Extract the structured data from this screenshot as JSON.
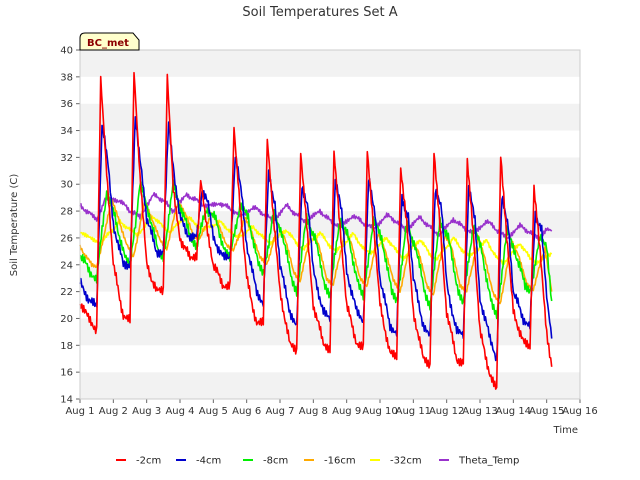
{
  "chart_data": {
    "type": "line",
    "title": "Soil Temperatures Set A",
    "xlabel": "Time",
    "ylabel": "Soil Temperature (C)",
    "station_tag": "BC_met",
    "xlim": [
      1,
      16
    ],
    "ylim": [
      14,
      40
    ],
    "x_ticks": [
      {
        "value": 1,
        "label": "Aug 1"
      },
      {
        "value": 2,
        "label": "Aug 2"
      },
      {
        "value": 3,
        "label": "Aug 3"
      },
      {
        "value": 4,
        "label": "Aug 4"
      },
      {
        "value": 5,
        "label": "Aug 5"
      },
      {
        "value": 6,
        "label": "Aug 6"
      },
      {
        "value": 7,
        "label": "Aug 7"
      },
      {
        "value": 8,
        "label": "Aug 8"
      },
      {
        "value": 9,
        "label": "Aug 9"
      },
      {
        "value": 10,
        "label": "Aug 10"
      },
      {
        "value": 11,
        "label": "Aug 11"
      },
      {
        "value": 12,
        "label": "Aug 12"
      },
      {
        "value": 13,
        "label": "Aug 13"
      },
      {
        "value": 14,
        "label": "Aug 14"
      },
      {
        "value": 15,
        "label": "Aug 15"
      },
      {
        "value": 16,
        "label": "Aug 16"
      }
    ],
    "y_ticks": [
      14,
      16,
      18,
      20,
      22,
      24,
      26,
      28,
      30,
      32,
      34,
      36,
      38,
      40
    ],
    "grid": "horizontal alternating bands",
    "legend_position": "bottom",
    "series": [
      {
        "name": "-2cm",
        "color": "#ff0000",
        "x": [
          1.0,
          1.25,
          1.5,
          1.62,
          1.8,
          2.0,
          2.3,
          2.5,
          2.62,
          2.8,
          3.0,
          3.3,
          3.5,
          3.62,
          3.8,
          4.0,
          4.3,
          4.5,
          4.62,
          4.8,
          5.0,
          5.3,
          5.5,
          5.62,
          5.8,
          6.0,
          6.3,
          6.5,
          6.62,
          6.8,
          7.0,
          7.3,
          7.5,
          7.62,
          7.8,
          8.0,
          8.3,
          8.5,
          8.62,
          8.8,
          9.0,
          9.3,
          9.5,
          9.62,
          9.8,
          10.0,
          10.3,
          10.5,
          10.62,
          10.8,
          11.0,
          11.3,
          11.5,
          11.62,
          11.8,
          12.0,
          12.3,
          12.5,
          12.62,
          12.8,
          13.0,
          13.3,
          13.5,
          13.62,
          13.8,
          14.0,
          14.3,
          14.5,
          14.62,
          14.8,
          15.0,
          15.15
        ],
        "y": [
          21.2,
          20.0,
          19.2,
          38.0,
          31.0,
          24.0,
          20.2,
          19.8,
          38.3,
          30.5,
          24.0,
          22.0,
          22.0,
          38.0,
          29.5,
          26.0,
          24.5,
          24.8,
          30.5,
          27.0,
          24.0,
          22.5,
          22.5,
          34.2,
          28.5,
          23.0,
          19.6,
          19.6,
          33.2,
          27.5,
          22.0,
          18.0,
          17.6,
          32.3,
          27.0,
          21.0,
          18.2,
          17.8,
          32.6,
          27.0,
          21.0,
          18.2,
          17.8,
          32.4,
          27.0,
          21.0,
          17.4,
          17.0,
          31.0,
          27.0,
          20.5,
          17.0,
          16.6,
          32.5,
          27.0,
          20.5,
          17.0,
          16.8,
          31.9,
          26.5,
          19.0,
          15.8,
          14.6,
          32.0,
          26.0,
          20.5,
          18.2,
          17.8,
          29.7,
          25.0,
          19.0,
          16.4
        ]
      },
      {
        "name": "-4cm",
        "color": "#0000cc",
        "x": [
          1.0,
          1.25,
          1.5,
          1.66,
          1.85,
          2.0,
          2.3,
          2.5,
          2.66,
          2.85,
          3.0,
          3.3,
          3.5,
          3.66,
          3.85,
          4.0,
          4.3,
          4.5,
          4.66,
          4.85,
          5.0,
          5.3,
          5.5,
          5.66,
          5.85,
          6.0,
          6.3,
          6.5,
          6.66,
          6.85,
          7.0,
          7.3,
          7.5,
          7.66,
          7.85,
          8.0,
          8.3,
          8.5,
          8.66,
          8.85,
          9.0,
          9.3,
          9.5,
          9.66,
          9.85,
          10.0,
          10.3,
          10.5,
          10.66,
          10.85,
          11.0,
          11.3,
          11.5,
          11.66,
          11.85,
          12.0,
          12.3,
          12.5,
          12.66,
          12.85,
          13.0,
          13.3,
          13.5,
          13.66,
          13.85,
          14.0,
          14.3,
          14.5,
          14.66,
          14.85,
          15.0,
          15.15
        ],
        "y": [
          22.7,
          21.5,
          20.8,
          34.4,
          31.5,
          27.0,
          24.0,
          24.0,
          34.8,
          31.0,
          27.5,
          25.0,
          25.0,
          34.8,
          30.0,
          27.5,
          26.0,
          26.0,
          29.5,
          28.5,
          26.0,
          24.5,
          24.5,
          32.0,
          29.5,
          25.5,
          22.0,
          21.2,
          30.8,
          28.5,
          24.0,
          20.5,
          19.4,
          30.0,
          28.0,
          23.5,
          20.5,
          19.8,
          30.2,
          28.0,
          23.5,
          20.5,
          19.8,
          30.3,
          28.0,
          23.0,
          19.5,
          19.0,
          29.0,
          27.5,
          23.0,
          19.5,
          18.6,
          29.7,
          28.0,
          22.5,
          19.0,
          18.7,
          29.6,
          27.5,
          21.5,
          18.5,
          17.0,
          29.0,
          27.0,
          22.0,
          20.0,
          19.5,
          27.8,
          26.5,
          21.5,
          18.5
        ]
      },
      {
        "name": "-8cm",
        "color": "#00ee00",
        "x": [
          1.0,
          1.3,
          1.5,
          1.8,
          2.05,
          2.35,
          2.5,
          2.8,
          3.05,
          3.35,
          3.5,
          3.8,
          4.05,
          4.35,
          4.5,
          4.8,
          5.05,
          5.35,
          5.5,
          5.8,
          6.05,
          6.35,
          6.5,
          6.8,
          7.05,
          7.35,
          7.5,
          7.8,
          8.05,
          8.35,
          8.5,
          8.8,
          9.05,
          9.35,
          9.5,
          9.8,
          10.05,
          10.35,
          10.5,
          10.8,
          11.05,
          11.35,
          11.5,
          11.8,
          12.05,
          12.35,
          12.5,
          12.8,
          13.05,
          13.35,
          13.5,
          13.8,
          14.05,
          14.35,
          14.5,
          14.8,
          15.0,
          15.15
        ],
        "y": [
          24.8,
          23.5,
          23.0,
          29.5,
          27.5,
          24.5,
          23.8,
          30.0,
          28.0,
          25.0,
          24.5,
          30.0,
          28.0,
          26.0,
          25.5,
          28.2,
          27.5,
          25.0,
          24.5,
          28.5,
          27.5,
          24.0,
          23.2,
          27.8,
          26.5,
          23.0,
          22.0,
          27.5,
          26.0,
          22.5,
          21.8,
          27.5,
          26.0,
          22.5,
          21.5,
          27.3,
          26.0,
          22.0,
          21.2,
          27.0,
          25.5,
          22.0,
          21.0,
          27.3,
          26.0,
          22.0,
          21.2,
          27.0,
          25.0,
          21.0,
          20.0,
          26.5,
          25.0,
          22.5,
          22.0,
          26.0,
          25.5,
          21.3
        ]
      },
      {
        "name": "-16cm",
        "color": "#ffaa00",
        "x": [
          1.0,
          1.35,
          1.5,
          1.95,
          2.15,
          2.4,
          2.6,
          2.95,
          3.15,
          3.4,
          3.6,
          3.95,
          4.15,
          4.4,
          4.6,
          4.95,
          5.15,
          5.4,
          5.6,
          5.95,
          6.15,
          6.4,
          6.6,
          6.95,
          7.15,
          7.4,
          7.6,
          7.95,
          8.15,
          8.4,
          8.6,
          8.95,
          9.15,
          9.4,
          9.6,
          9.95,
          10.15,
          10.4,
          10.6,
          10.95,
          11.15,
          11.4,
          11.6,
          11.95,
          12.15,
          12.4,
          12.6,
          12.95,
          13.15,
          13.4,
          13.6,
          13.95,
          14.15,
          14.4,
          14.6,
          14.95,
          15.15
        ],
        "y": [
          25.3,
          24.0,
          23.8,
          28.8,
          27.5,
          25.5,
          24.5,
          28.8,
          27.5,
          25.8,
          25.2,
          28.8,
          27.8,
          26.2,
          26.0,
          27.8,
          27.0,
          25.5,
          25.0,
          27.5,
          26.5,
          24.5,
          24.0,
          27.0,
          26.0,
          23.5,
          22.8,
          26.5,
          25.5,
          23.0,
          22.5,
          26.5,
          25.5,
          23.0,
          22.3,
          26.3,
          25.2,
          22.8,
          22.0,
          26.0,
          25.0,
          22.5,
          21.8,
          26.2,
          25.2,
          22.5,
          22.0,
          26.0,
          24.5,
          21.8,
          21.0,
          25.8,
          24.8,
          22.5,
          22.2,
          25.3,
          22.0
        ]
      },
      {
        "name": "-32cm",
        "color": "#ffff00",
        "x": [
          1.0,
          1.4,
          1.6,
          2.2,
          2.5,
          2.7,
          3.2,
          3.5,
          3.7,
          4.2,
          4.5,
          4.7,
          5.2,
          5.5,
          5.7,
          6.2,
          6.5,
          6.7,
          7.2,
          7.5,
          7.7,
          8.2,
          8.5,
          8.7,
          9.2,
          9.5,
          9.7,
          10.2,
          10.5,
          10.7,
          11.2,
          11.5,
          11.7,
          12.2,
          12.5,
          12.7,
          13.2,
          13.5,
          13.7,
          14.2,
          14.5,
          14.7,
          15.15
        ],
        "y": [
          26.5,
          25.8,
          25.6,
          27.2,
          26.6,
          26.2,
          27.6,
          26.8,
          26.5,
          27.6,
          27.0,
          26.6,
          27.2,
          26.5,
          26.0,
          26.8,
          26.0,
          25.6,
          26.6,
          25.6,
          25.2,
          26.4,
          25.4,
          25.0,
          26.3,
          25.2,
          24.8,
          26.0,
          25.0,
          24.5,
          25.9,
          24.8,
          24.4,
          26.0,
          25.0,
          24.6,
          25.8,
          24.5,
          24.1,
          25.6,
          24.5,
          24.2,
          24.8
        ]
      },
      {
        "name": "Theta_Temp",
        "color": "#9932cc",
        "x": [
          1.0,
          1.3,
          1.5,
          1.75,
          2.2,
          2.5,
          2.8,
          3.2,
          3.5,
          3.8,
          4.2,
          4.5,
          4.8,
          5.2,
          5.5,
          5.8,
          6.2,
          6.5,
          6.8,
          7.2,
          7.5,
          7.8,
          8.2,
          8.5,
          8.8,
          9.2,
          9.5,
          9.8,
          10.2,
          10.5,
          10.8,
          11.2,
          11.5,
          11.8,
          12.2,
          12.5,
          12.8,
          13.2,
          13.5,
          13.8,
          14.2,
          14.5,
          14.8,
          15.0,
          15.15
        ],
        "y": [
          28.4,
          27.8,
          27.3,
          28.9,
          28.8,
          28.0,
          27.6,
          29.2,
          28.8,
          28.0,
          29.2,
          28.8,
          28.3,
          28.6,
          28.2,
          27.6,
          28.3,
          27.8,
          27.3,
          28.4,
          27.7,
          27.2,
          28.0,
          27.3,
          26.8,
          27.7,
          27.1,
          26.7,
          27.7,
          27.2,
          26.6,
          27.5,
          26.8,
          26.2,
          27.4,
          26.8,
          26.3,
          27.3,
          26.6,
          26.0,
          26.9,
          26.4,
          26.0,
          26.6,
          26.5
        ]
      }
    ]
  }
}
